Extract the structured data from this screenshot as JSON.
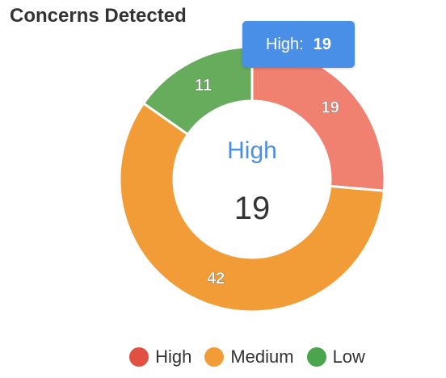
{
  "chart_data": {
    "type": "pie",
    "variant": "donut",
    "title": "Concerns Detected",
    "categories": [
      "High",
      "Medium",
      "Low"
    ],
    "values": [
      19,
      42,
      11
    ],
    "colors": [
      "#f08070",
      "#f29c38",
      "#67ab5c"
    ],
    "legend_colors": [
      "#e15141",
      "#f29c38",
      "#4aa54c"
    ],
    "legend_position": "bottom",
    "data_labels": [
      "19",
      "42",
      "11"
    ],
    "center": {
      "label": "High",
      "value": "19"
    },
    "tooltip": {
      "label": "High:",
      "value": "19"
    }
  }
}
